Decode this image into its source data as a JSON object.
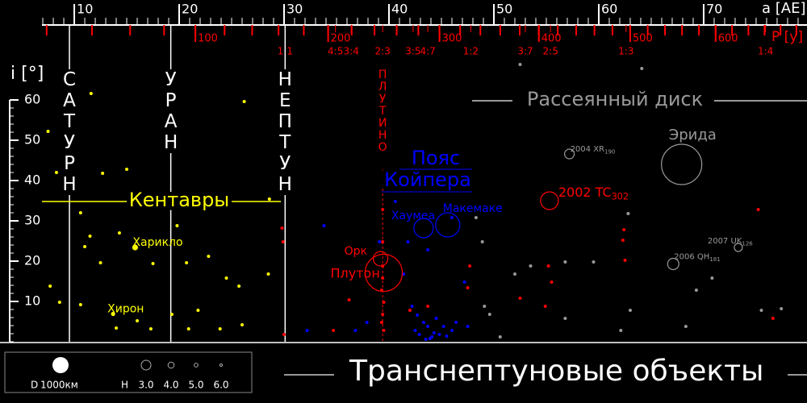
{
  "chart_data": {
    "type": "scatter",
    "title": "Транснептуновые объекты",
    "xlabel": "a [AE]",
    "ylabel": "i [°]",
    "p_label": "P [y]",
    "xlim": [
      6.92,
      79.85
    ],
    "xticks": [
      10,
      20,
      30,
      40,
      50,
      60,
      70
    ],
    "x_minor_step": 1,
    "ylim": [
      0,
      80
    ],
    "yticks": [
      10,
      20,
      30,
      40,
      50,
      60
    ],
    "y_minor_step": 2,
    "p_ticks": [
      100,
      200,
      300,
      400,
      500,
      600
    ],
    "p_minor_step": 20,
    "resonances": [
      {
        "a": 30.1,
        "label": "1:1"
      },
      {
        "a": 34.9,
        "label": "4:5"
      },
      {
        "a": 36.4,
        "label": "3:4"
      },
      {
        "a": 39.4,
        "label": "2:3"
      },
      {
        "a": 42.3,
        "label": "3:5"
      },
      {
        "a": 43.7,
        "label": "4:7"
      },
      {
        "a": 47.8,
        "label": "1:2"
      },
      {
        "a": 53.0,
        "label": "3:7"
      },
      {
        "a": 55.4,
        "label": "2:5"
      },
      {
        "a": 62.6,
        "label": "1:3"
      },
      {
        "a": 75.9,
        "label": "1:4"
      }
    ],
    "planets": [
      {
        "name": "САТУРН",
        "a": 9.54
      },
      {
        "name": "УРАН",
        "a": 19.2
      },
      {
        "name": "НЕПТУН",
        "a": 30.1
      }
    ],
    "regions": {
      "centaurs": "Кентавры",
      "plutinos": "ПЛУТИНО",
      "kuiper_belt": [
        "Пояс",
        "Койпера"
      ],
      "scattered_disk": "Рассеянный диск"
    },
    "series": [
      {
        "color": "#ffff00",
        "x": [
          11.6,
          26.2,
          7.5,
          8.3,
          12.7,
          15,
          10.6,
          11.5,
          14.3,
          11,
          12.5,
          17.5,
          19.8,
          20.7,
          22.8,
          24.5,
          25.7,
          26,
          19.3,
          16,
          14,
          8.6,
          7.7,
          10.6,
          28.5,
          28.6,
          21.8,
          23.9,
          20.9,
          17.3
        ],
        "y": [
          61.6,
          59.6,
          52.2,
          42,
          41.8,
          42.8,
          32,
          26.2,
          27,
          23.6,
          19.6,
          19.4,
          28.8,
          19.6,
          21.2,
          15.8,
          13.8,
          4.2,
          6.8,
          5.2,
          3.4,
          9.8,
          13.8,
          9.2,
          16.8,
          35.4,
          7.8,
          3.2,
          3.2,
          3.2
        ]
      },
      {
        "color": "#0000ff",
        "x": [
          33.8,
          40.6,
          41.8,
          43.7,
          46,
          47.2,
          46,
          42.9,
          43.7,
          44.5,
          44.8,
          44.1,
          43.3,
          42.5,
          45.2,
          46.4,
          47.5,
          37.9,
          36.8,
          32.2,
          42.2,
          41.4,
          39.1,
          43.9,
          44.3,
          45.5,
          42.7,
          43.5
        ],
        "y": [
          28.8,
          34.8,
          24.8,
          22.8,
          30.8,
          14.8,
          2.8,
          1.8,
          3.8,
          5.8,
          1.8,
          1.2,
          4.8,
          2.8,
          3.8,
          4.8,
          3.8,
          4.8,
          2.8,
          2.8,
          8.8,
          16.8,
          24.8,
          0.8,
          2.2,
          1.4,
          6.6,
          0.6
        ]
      },
      {
        "color": "#ff0000",
        "x": [
          39.4,
          39.4,
          39.4,
          39.3,
          39.4,
          39.5,
          29.8,
          29.9,
          30,
          34.7,
          36.2,
          42,
          43.7,
          47.5,
          47.7,
          52.5,
          55.2,
          55.5,
          54.9,
          62.4,
          62.5,
          62.3,
          75.2,
          76.6,
          39.5,
          39.4,
          39.3
        ],
        "y": [
          32.8,
          24.8,
          18.8,
          12.8,
          6.8,
          2.8,
          28.2,
          24.8,
          1.8,
          2.8,
          10.4,
          7.8,
          8.8,
          13.4,
          18.8,
          10.8,
          18.8,
          14.8,
          8.8,
          27.8,
          20.2,
          25.2,
          32.8,
          5.8,
          9.8,
          15.8,
          4.8
        ]
      },
      {
        "color": "#999999",
        "x": [
          64.1,
          52.5,
          48.3,
          48.9,
          49.1,
          49.6,
          50.6,
          52,
          53.5,
          56.8,
          59.5,
          62.8,
          63,
          62.1,
          68.3,
          69.3,
          70.8,
          75.5,
          77.4,
          56.8
        ],
        "y": [
          67.8,
          68.8,
          30.8,
          24.8,
          8.8,
          6.8,
          1.2,
          16.8,
          18.8,
          19.8,
          19.8,
          31.8,
          7.8,
          2.8,
          3.8,
          12.8,
          15.8,
          7.8,
          8.2,
          5.8
        ]
      }
    ],
    "objects": [
      {
        "name": "Плутон",
        "a": 39.5,
        "i": 17.1,
        "diameter": 2300,
        "color": "#ff0000"
      },
      {
        "name": "Орк",
        "a": 39.2,
        "i": 20.6,
        "diameter": 900,
        "color": "#ff0000"
      },
      {
        "name": "Хаумеа",
        "a": 43.3,
        "i": 28.2,
        "diameter": 1200,
        "color": "#0000ff"
      },
      {
        "name": "Макемаке",
        "a": 45.6,
        "i": 29,
        "diameter": 1500,
        "color": "#0000ff"
      },
      {
        "name": "Эрида",
        "a": 67.9,
        "i": 44,
        "diameter": 2500,
        "color": "#999999"
      },
      {
        "name": "2002 TC",
        "name_sub": "302",
        "a": 55.3,
        "i": 35,
        "diameter": 1100,
        "color": "#ff0000"
      },
      {
        "name": "2004 XR",
        "name_sub": "190",
        "a": 57.2,
        "i": 46.6,
        "diameter": 600,
        "color": "#999999"
      },
      {
        "name": "2007 UK",
        "name_sub": "126",
        "a": 73.3,
        "i": 23.4,
        "diameter": 500,
        "color": "#999999"
      },
      {
        "name": "2006 QH",
        "name_sub": "181",
        "a": 67.1,
        "i": 19.3,
        "diameter": 700,
        "color": "#999999"
      },
      {
        "name": "Харикло",
        "a": 15.8,
        "i": 23.4,
        "diameter": 300,
        "color": "#ffff00"
      },
      {
        "name": "Хирон",
        "a": 13.7,
        "i": 6.9,
        "diameter": 200,
        "color": "#ffff00"
      }
    ],
    "legend": {
      "d_label": "D",
      "d_value": 1000,
      "d_value_label": "1000км",
      "h_label": "H",
      "h_values": [
        {
          "value": 3,
          "label": "3.0"
        },
        {
          "value": 4,
          "label": "4.0"
        },
        {
          "value": 5,
          "label": "5.0"
        },
        {
          "value": 6,
          "label": "6.0"
        }
      ]
    }
  }
}
